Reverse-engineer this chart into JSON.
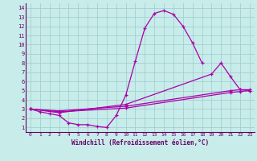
{
  "bg_color": "#c8ecea",
  "line_color": "#aa00aa",
  "spine_color": "#660066",
  "grid_color": "#99cccc",
  "xlim": [
    -0.5,
    23.5
  ],
  "ylim": [
    0.5,
    14.5
  ],
  "xticks": [
    0,
    1,
    2,
    3,
    4,
    5,
    6,
    7,
    8,
    9,
    10,
    11,
    12,
    13,
    14,
    15,
    16,
    17,
    18,
    19,
    20,
    21,
    22,
    23
  ],
  "yticks": [
    1,
    2,
    3,
    4,
    5,
    6,
    7,
    8,
    9,
    10,
    11,
    12,
    13,
    14
  ],
  "xlabel": "Windchill (Refroidissement éolien,°C)",
  "series": [
    {
      "x": [
        0,
        1,
        2,
        3,
        4,
        5,
        6,
        7,
        8,
        9,
        10,
        11,
        12,
        13,
        14,
        15,
        16,
        17,
        18
      ],
      "y": [
        3.0,
        2.7,
        2.5,
        2.3,
        1.5,
        1.3,
        1.3,
        1.1,
        1.0,
        2.3,
        4.5,
        8.2,
        11.8,
        13.4,
        13.7,
        13.3,
        12.0,
        10.2,
        8.0
      ]
    },
    {
      "x": [
        0,
        3,
        10,
        19,
        20,
        21,
        22,
        23
      ],
      "y": [
        3.0,
        2.6,
        3.5,
        6.8,
        8.0,
        6.5,
        5.1,
        5.0
      ]
    },
    {
      "x": [
        0,
        3,
        10,
        21,
        22,
        23
      ],
      "y": [
        3.0,
        2.8,
        3.3,
        5.0,
        5.1,
        5.1
      ]
    },
    {
      "x": [
        0,
        3,
        10,
        21,
        22,
        23
      ],
      "y": [
        3.0,
        2.7,
        3.1,
        4.8,
        4.9,
        5.0
      ]
    }
  ]
}
